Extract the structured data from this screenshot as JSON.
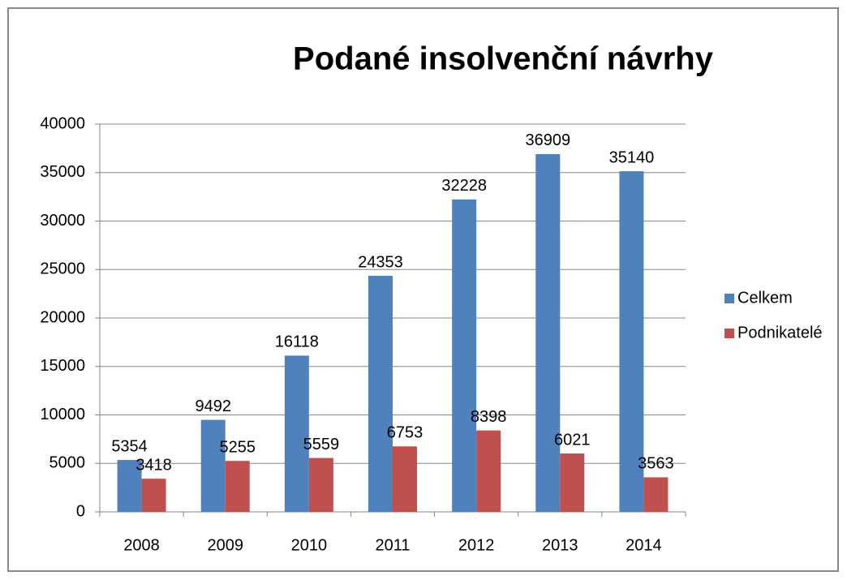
{
  "chart_data": {
    "type": "bar",
    "title": "Podané insolvenční návrhy",
    "categories": [
      "2008",
      "2009",
      "2010",
      "2011",
      "2012",
      "2013",
      "2014"
    ],
    "series": [
      {
        "name": "Celkem",
        "color": "#4f81bd",
        "values": [
          5354,
          9492,
          16118,
          24353,
          32228,
          36909,
          35140
        ]
      },
      {
        "name": "Podnikatelé",
        "color": "#c0504d",
        "values": [
          3418,
          5255,
          5559,
          6753,
          8398,
          6021,
          3563
        ]
      }
    ],
    "ylim": [
      0,
      40000
    ],
    "yticks": [
      0,
      5000,
      10000,
      15000,
      20000,
      25000,
      30000,
      35000,
      40000
    ],
    "grid": true,
    "legend": "right"
  }
}
